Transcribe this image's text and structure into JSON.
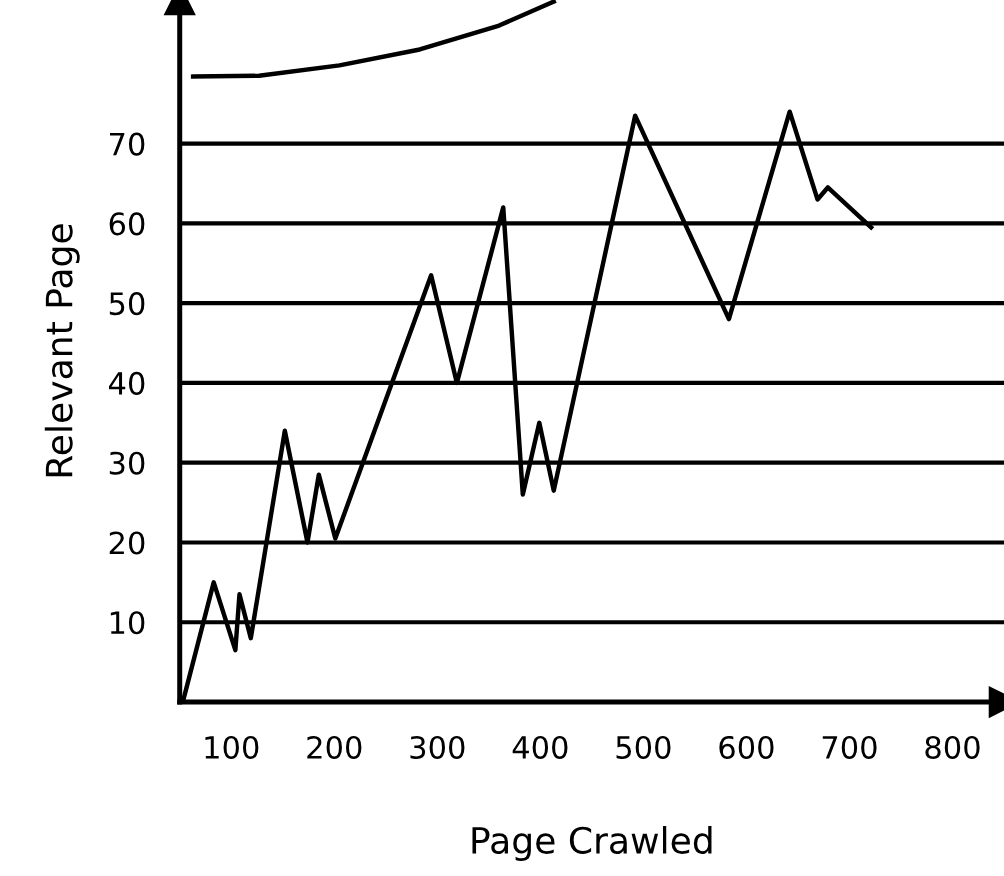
{
  "chart_data": {
    "type": "line",
    "xlabel": "Page Crawled",
    "ylabel": "Relevant Page",
    "xlim": [
      50,
      850
    ],
    "ylim": [
      0,
      88
    ],
    "xticks": [
      100,
      200,
      300,
      400,
      500,
      600,
      700,
      800
    ],
    "yticks": [
      10,
      20,
      30,
      40,
      50,
      60,
      70
    ],
    "grid": "y",
    "marker": "none",
    "line_style": "solid",
    "series": [
      {
        "color": "#000000",
        "x": [
          53,
          83,
          104,
          108,
          119,
          152,
          174,
          185,
          201,
          294,
          319,
          364,
          383,
          399,
          413,
          492,
          583,
          642,
          669,
          679,
          721
        ],
        "values": [
          0,
          15,
          6.5,
          13.5,
          8,
          34,
          20,
          28.5,
          20.5,
          53.5,
          40,
          62,
          26,
          35,
          26.5,
          73.5,
          48,
          74,
          63,
          64.5,
          59.5
        ]
      },
      {
        "color": "#000000",
        "x": [
          63,
          127,
          205,
          283,
          360,
          413
        ],
        "values": [
          78.4,
          78.5,
          79.8,
          81.8,
          84.8,
          87.8
        ]
      }
    ]
  }
}
